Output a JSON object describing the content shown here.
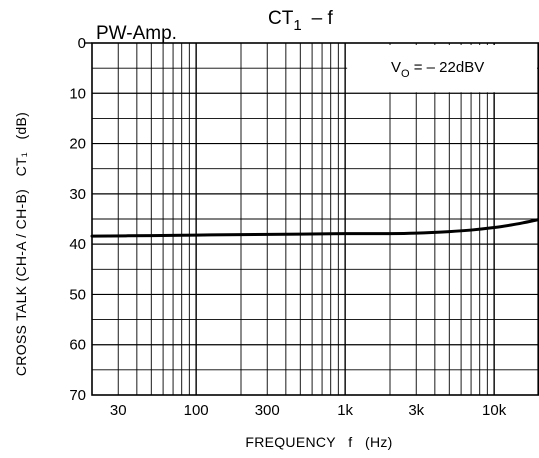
{
  "chart_data": {
    "type": "line",
    "subtitle": "PW-Amp.",
    "title_main": "CT",
    "title_sub": "1",
    "title_rest": "–  f",
    "annotation_main": "V",
    "annotation_sub": "O",
    "annotation_rest": " = – 22dBV",
    "xlabel": "FREQUENCY   f   (Hz)",
    "ylabel": "CROSS TALK (CH-A / CH-B)   CT₁   (dB)",
    "x_scale": "log",
    "xlim": [
      20,
      20000
    ],
    "ylim": [
      0,
      70
    ],
    "y_inverted": true,
    "grid": true,
    "x_tick_labels": [
      {
        "value": 30,
        "label": "30"
      },
      {
        "value": 100,
        "label": "100"
      },
      {
        "value": 300,
        "label": "300"
      },
      {
        "value": 1000,
        "label": "1k"
      },
      {
        "value": 3000,
        "label": "3k"
      },
      {
        "value": 10000,
        "label": "10k"
      }
    ],
    "y_tick_labels": [
      {
        "value": 0,
        "label": "0"
      },
      {
        "value": 10,
        "label": "10"
      },
      {
        "value": 20,
        "label": "20"
      },
      {
        "value": 30,
        "label": "30"
      },
      {
        "value": 40,
        "label": "40"
      },
      {
        "value": 50,
        "label": "50"
      },
      {
        "value": 60,
        "label": "60"
      },
      {
        "value": 70,
        "label": "70"
      }
    ],
    "series": [
      {
        "color": "#000000",
        "x": [
          20,
          50,
          100,
          200,
          500,
          1000,
          2000,
          3000,
          5000,
          7000,
          10000,
          13000,
          16000,
          20000
        ],
        "y": [
          38.4,
          38.3,
          38.2,
          38.1,
          38.0,
          37.9,
          37.9,
          37.8,
          37.5,
          37.2,
          36.7,
          36.2,
          35.7,
          35.1
        ]
      }
    ]
  }
}
